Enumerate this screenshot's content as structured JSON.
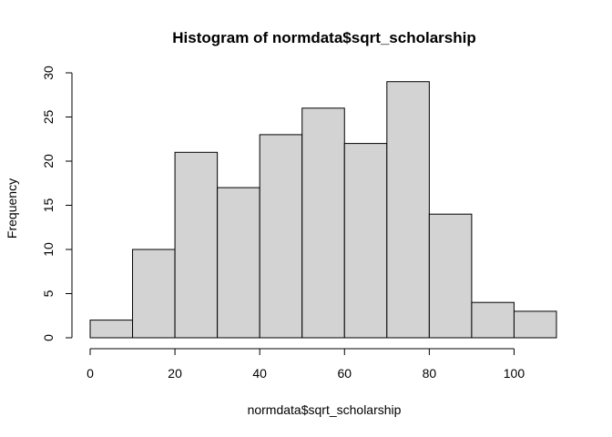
{
  "chart_data": {
    "type": "bar",
    "title": "Histogram of normdata$sqrt_scholarship",
    "xlabel": "normdata$sqrt_scholarship",
    "ylabel": "Frequency",
    "bins": [
      {
        "start": 0,
        "end": 10,
        "count": 2
      },
      {
        "start": 10,
        "end": 20,
        "count": 10
      },
      {
        "start": 20,
        "end": 30,
        "count": 21
      },
      {
        "start": 30,
        "end": 40,
        "count": 17
      },
      {
        "start": 40,
        "end": 50,
        "count": 23
      },
      {
        "start": 50,
        "end": 60,
        "count": 26
      },
      {
        "start": 60,
        "end": 70,
        "count": 22
      },
      {
        "start": 70,
        "end": 80,
        "count": 29
      },
      {
        "start": 80,
        "end": 90,
        "count": 14
      },
      {
        "start": 90,
        "end": 100,
        "count": 4
      },
      {
        "start": 100,
        "end": 110,
        "count": 3
      }
    ],
    "xlim": [
      0,
      110
    ],
    "ylim": [
      0,
      30
    ],
    "x_ticks": [
      0,
      20,
      40,
      60,
      80,
      100
    ],
    "y_ticks": [
      0,
      5,
      10,
      15,
      20,
      25,
      30
    ],
    "bar_color": "#d3d3d3",
    "border_color": "#000000",
    "grid": false,
    "legend": "none"
  }
}
